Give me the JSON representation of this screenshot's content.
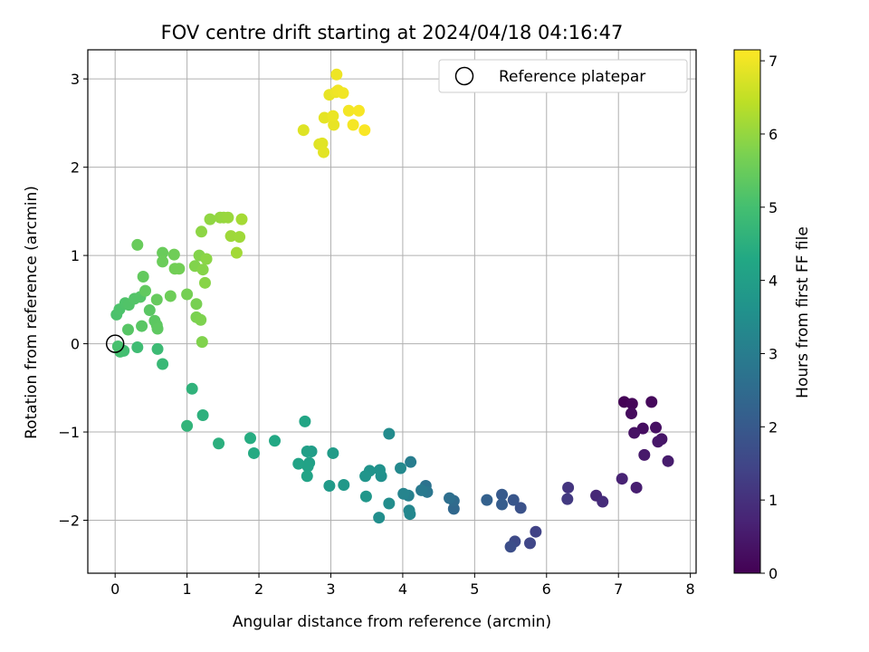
{
  "chart_data": {
    "type": "scatter",
    "title": "FOV centre drift starting at 2024/04/18 04:16:47",
    "xlabel": "Angular distance from reference (arcmin)",
    "ylabel": "Rotation from reference (arcmin)",
    "xlim": [
      -0.38,
      8.08
    ],
    "ylim": [
      -2.6,
      3.33
    ],
    "xticks": [
      "0",
      "1",
      "2",
      "3",
      "4",
      "5",
      "6",
      "7",
      "8"
    ],
    "yticks": [
      "−2",
      "−1",
      "0",
      "1",
      "2",
      "3"
    ],
    "grid": true,
    "legend": {
      "position": "top-right",
      "label": "Reference platepar"
    },
    "colorbar": {
      "label": "Hours from first FF file",
      "range": [
        0,
        7.15
      ],
      "ticks": [
        "0",
        "1",
        "2",
        "3",
        "4",
        "5",
        "6",
        "7"
      ],
      "colormap": "viridis"
    },
    "reference": {
      "x": 0,
      "y": 0
    },
    "points": [
      {
        "x": 7.08,
        "y": -0.66,
        "t": 0.05
      },
      {
        "x": 7.19,
        "y": -0.68,
        "t": 0.1
      },
      {
        "x": 7.46,
        "y": -0.66,
        "t": 0.15
      },
      {
        "x": 7.18,
        "y": -0.79,
        "t": 0.2
      },
      {
        "x": 7.34,
        "y": -0.96,
        "t": 0.25
      },
      {
        "x": 7.52,
        "y": -0.95,
        "t": 0.3
      },
      {
        "x": 7.22,
        "y": -1.01,
        "t": 0.35
      },
      {
        "x": 7.6,
        "y": -1.08,
        "t": 0.4
      },
      {
        "x": 7.55,
        "y": -1.11,
        "t": 0.45
      },
      {
        "x": 7.36,
        "y": -1.26,
        "t": 0.5
      },
      {
        "x": 7.69,
        "y": -1.33,
        "t": 0.55
      },
      {
        "x": 7.25,
        "y": -1.63,
        "t": 0.6
      },
      {
        "x": 7.05,
        "y": -1.53,
        "t": 0.7
      },
      {
        "x": 6.69,
        "y": -1.72,
        "t": 0.8
      },
      {
        "x": 6.78,
        "y": -1.79,
        "t": 0.9
      },
      {
        "x": 6.3,
        "y": -1.63,
        "t": 1.1
      },
      {
        "x": 6.29,
        "y": -1.76,
        "t": 1.2
      },
      {
        "x": 5.85,
        "y": -2.13,
        "t": 1.4
      },
      {
        "x": 5.77,
        "y": -2.26,
        "t": 1.5
      },
      {
        "x": 5.56,
        "y": -2.24,
        "t": 1.6
      },
      {
        "x": 5.5,
        "y": -2.3,
        "t": 1.7
      },
      {
        "x": 5.64,
        "y": -1.86,
        "t": 1.8
      },
      {
        "x": 5.54,
        "y": -1.77,
        "t": 1.9
      },
      {
        "x": 5.38,
        "y": -1.71,
        "t": 2.0
      },
      {
        "x": 5.38,
        "y": -1.82,
        "t": 2.1
      },
      {
        "x": 5.17,
        "y": -1.77,
        "t": 2.2
      },
      {
        "x": 4.71,
        "y": -1.87,
        "t": 2.4
      },
      {
        "x": 4.71,
        "y": -1.78,
        "t": 2.5
      },
      {
        "x": 4.65,
        "y": -1.75,
        "t": 2.6
      },
      {
        "x": 4.32,
        "y": -1.61,
        "t": 2.7
      },
      {
        "x": 4.34,
        "y": -1.68,
        "t": 2.8
      },
      {
        "x": 4.26,
        "y": -1.66,
        "t": 2.9
      },
      {
        "x": 4.11,
        "y": -1.34,
        "t": 3.0
      },
      {
        "x": 4.08,
        "y": -1.72,
        "t": 3.1
      },
      {
        "x": 4.01,
        "y": -1.7,
        "t": 3.2
      },
      {
        "x": 4.09,
        "y": -1.89,
        "t": 3.25
      },
      {
        "x": 4.1,
        "y": -1.93,
        "t": 3.3
      },
      {
        "x": 3.97,
        "y": -1.41,
        "t": 3.35
      },
      {
        "x": 3.81,
        "y": -1.02,
        "t": 3.4
      },
      {
        "x": 3.81,
        "y": -1.81,
        "t": 3.45
      },
      {
        "x": 3.67,
        "y": -1.97,
        "t": 3.5
      },
      {
        "x": 3.7,
        "y": -1.5,
        "t": 3.55
      },
      {
        "x": 3.68,
        "y": -1.43,
        "t": 3.6
      },
      {
        "x": 3.54,
        "y": -1.44,
        "t": 3.65
      },
      {
        "x": 3.48,
        "y": -1.5,
        "t": 3.7
      },
      {
        "x": 3.49,
        "y": -1.73,
        "t": 3.75
      },
      {
        "x": 3.18,
        "y": -1.6,
        "t": 3.8
      },
      {
        "x": 2.98,
        "y": -1.61,
        "t": 3.85
      },
      {
        "x": 3.03,
        "y": -1.24,
        "t": 3.9
      },
      {
        "x": 2.73,
        "y": -1.22,
        "t": 3.95
      },
      {
        "x": 2.67,
        "y": -1.22,
        "t": 4.0
      },
      {
        "x": 2.7,
        "y": -1.35,
        "t": 4.05
      },
      {
        "x": 2.68,
        "y": -1.39,
        "t": 4.1
      },
      {
        "x": 2.67,
        "y": -1.5,
        "t": 4.12
      },
      {
        "x": 2.55,
        "y": -1.36,
        "t": 4.15
      },
      {
        "x": 2.64,
        "y": -0.88,
        "t": 4.2
      },
      {
        "x": 2.22,
        "y": -1.1,
        "t": 4.3
      },
      {
        "x": 1.93,
        "y": -1.24,
        "t": 4.35
      },
      {
        "x": 1.88,
        "y": -1.07,
        "t": 4.4
      },
      {
        "x": 1.44,
        "y": -1.13,
        "t": 4.5
      },
      {
        "x": 1.22,
        "y": -0.81,
        "t": 4.55
      },
      {
        "x": 1.07,
        "y": -0.51,
        "t": 4.6
      },
      {
        "x": 1.0,
        "y": -0.93,
        "t": 4.65
      },
      {
        "x": 0.66,
        "y": -0.23,
        "t": 4.8
      },
      {
        "x": 0.59,
        "y": -0.06,
        "t": 4.85
      },
      {
        "x": 0.31,
        "y": -0.04,
        "t": 4.9
      },
      {
        "x": 0.12,
        "y": -0.08,
        "t": 4.95
      },
      {
        "x": 0.07,
        "y": -0.09,
        "t": 5.0
      },
      {
        "x": 0.04,
        "y": -0.03,
        "t": 5.05
      },
      {
        "x": 0.02,
        "y": 0.33,
        "t": 5.1
      },
      {
        "x": 0.06,
        "y": 0.39,
        "t": 5.12
      },
      {
        "x": 0.14,
        "y": 0.46,
        "t": 5.15
      },
      {
        "x": 0.19,
        "y": 0.44,
        "t": 5.18
      },
      {
        "x": 0.27,
        "y": 0.51,
        "t": 5.2
      },
      {
        "x": 0.35,
        "y": 0.53,
        "t": 5.22
      },
      {
        "x": 0.18,
        "y": 0.16,
        "t": 5.25
      },
      {
        "x": 0.37,
        "y": 0.2,
        "t": 5.28
      },
      {
        "x": 0.48,
        "y": 0.38,
        "t": 5.3
      },
      {
        "x": 0.55,
        "y": 0.26,
        "t": 5.32
      },
      {
        "x": 0.58,
        "y": 0.21,
        "t": 5.34
      },
      {
        "x": 0.59,
        "y": 0.17,
        "t": 5.36
      },
      {
        "x": 0.42,
        "y": 0.6,
        "t": 5.4
      },
      {
        "x": 0.39,
        "y": 0.76,
        "t": 5.42
      },
      {
        "x": 0.58,
        "y": 0.5,
        "t": 5.45
      },
      {
        "x": 0.31,
        "y": 1.12,
        "t": 5.48
      },
      {
        "x": 0.66,
        "y": 1.03,
        "t": 5.5
      },
      {
        "x": 0.66,
        "y": 0.93,
        "t": 5.52
      },
      {
        "x": 0.77,
        "y": 0.54,
        "t": 5.55
      },
      {
        "x": 0.82,
        "y": 1.01,
        "t": 5.58
      },
      {
        "x": 0.83,
        "y": 0.85,
        "t": 5.6
      },
      {
        "x": 0.89,
        "y": 0.85,
        "t": 5.62
      },
      {
        "x": 1.0,
        "y": 0.56,
        "t": 5.65
      },
      {
        "x": 1.13,
        "y": 0.45,
        "t": 5.7
      },
      {
        "x": 1.13,
        "y": 0.3,
        "t": 5.72
      },
      {
        "x": 1.19,
        "y": 0.27,
        "t": 5.75
      },
      {
        "x": 1.21,
        "y": 0.02,
        "t": 5.78
      },
      {
        "x": 1.11,
        "y": 0.88,
        "t": 5.8
      },
      {
        "x": 1.17,
        "y": 1.0,
        "t": 5.82
      },
      {
        "x": 1.22,
        "y": 0.84,
        "t": 5.85
      },
      {
        "x": 1.25,
        "y": 0.69,
        "t": 5.87
      },
      {
        "x": 1.27,
        "y": 0.96,
        "t": 5.9
      },
      {
        "x": 1.2,
        "y": 1.27,
        "t": 5.92
      },
      {
        "x": 1.32,
        "y": 1.41,
        "t": 5.95
      },
      {
        "x": 1.46,
        "y": 1.43,
        "t": 6.0
      },
      {
        "x": 1.51,
        "y": 1.43,
        "t": 6.02
      },
      {
        "x": 1.57,
        "y": 1.43,
        "t": 6.05
      },
      {
        "x": 1.61,
        "y": 1.22,
        "t": 6.1
      },
      {
        "x": 1.73,
        "y": 1.21,
        "t": 6.12
      },
      {
        "x": 1.69,
        "y": 1.03,
        "t": 6.15
      },
      {
        "x": 1.76,
        "y": 1.41,
        "t": 6.18
      },
      {
        "x": 2.62,
        "y": 2.42,
        "t": 6.8
      },
      {
        "x": 2.84,
        "y": 2.26,
        "t": 6.82
      },
      {
        "x": 2.88,
        "y": 2.27,
        "t": 6.84
      },
      {
        "x": 2.9,
        "y": 2.17,
        "t": 6.86
      },
      {
        "x": 2.91,
        "y": 2.56,
        "t": 6.88
      },
      {
        "x": 2.98,
        "y": 2.82,
        "t": 6.9
      },
      {
        "x": 3.04,
        "y": 2.48,
        "t": 6.92
      },
      {
        "x": 3.03,
        "y": 2.58,
        "t": 6.94
      },
      {
        "x": 3.07,
        "y": 2.85,
        "t": 6.96
      },
      {
        "x": 3.08,
        "y": 3.05,
        "t": 6.98
      },
      {
        "x": 3.1,
        "y": 2.87,
        "t": 7.0
      },
      {
        "x": 3.17,
        "y": 2.84,
        "t": 7.02
      },
      {
        "x": 3.25,
        "y": 2.64,
        "t": 7.04
      },
      {
        "x": 3.31,
        "y": 2.48,
        "t": 7.06
      },
      {
        "x": 3.39,
        "y": 2.64,
        "t": 7.08
      },
      {
        "x": 3.47,
        "y": 2.42,
        "t": 7.1
      }
    ]
  }
}
